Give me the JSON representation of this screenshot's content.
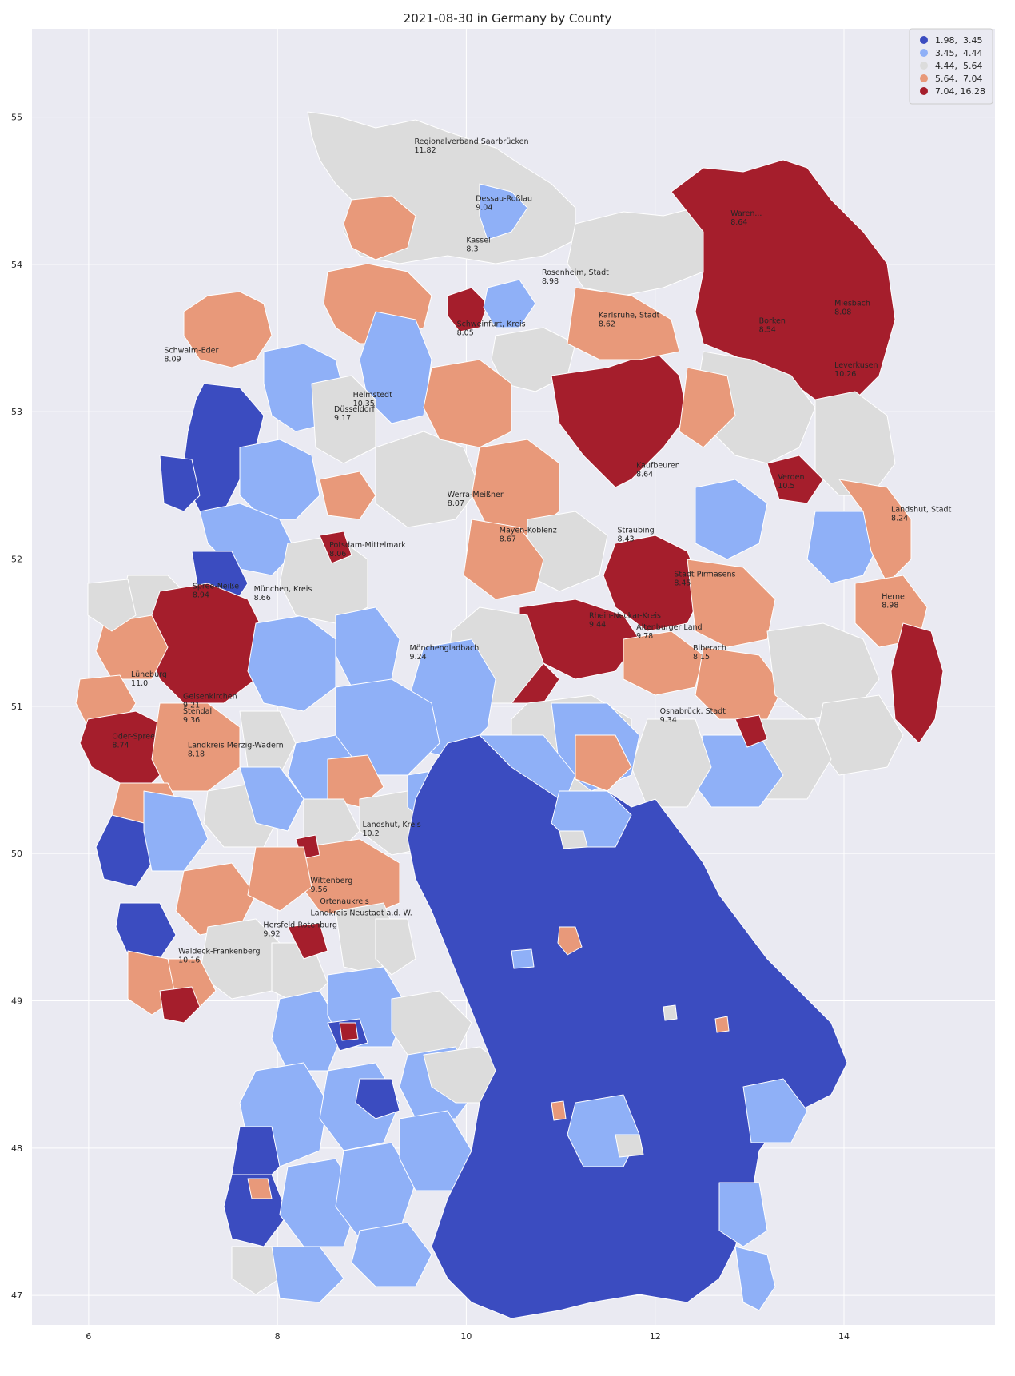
{
  "title": "2021-08-30 in Germany by County",
  "colors": {
    "background": "#eaeaf2",
    "grid": "#ffffff",
    "bin1": "#3b4cc0",
    "bin2": "#8fb0f7",
    "bin3": "#dcdcdc",
    "bin4": "#e8997a",
    "bin5": "#a51e2c",
    "border": "#ffffff"
  },
  "axes": {
    "x_ticks": [
      "6",
      "8",
      "10",
      "12",
      "14"
    ],
    "y_ticks": [
      "47",
      "48",
      "49",
      "50",
      "51",
      "52",
      "53",
      "54",
      "55"
    ]
  },
  "legend": {
    "placement": "top-right",
    "entries": [
      {
        "label": "1.98,  3.45",
        "color": "#3b4cc0"
      },
      {
        "label": "3.45,  4.44",
        "color": "#8fb0f7"
      },
      {
        "label": "4.44,  5.64",
        "color": "#dcdcdc"
      },
      {
        "label": "5.64,  7.04",
        "color": "#e8997a"
      },
      {
        "label": "7.04, 16.28",
        "color": "#a51e2c"
      }
    ]
  },
  "chart_data": {
    "type": "choropleth",
    "title": "2021-08-30 in Germany by County",
    "xlim": [
      5.4,
      15.6
    ],
    "ylim": [
      46.8,
      55.6
    ],
    "x_ticks": [
      6,
      8,
      10,
      12,
      14
    ],
    "y_ticks": [
      47,
      48,
      49,
      50,
      51,
      52,
      53,
      54,
      55
    ],
    "bins": [
      [
        1.98,
        3.45
      ],
      [
        3.45,
        4.44
      ],
      [
        4.44,
        5.64
      ],
      [
        5.64,
        7.04
      ],
      [
        7.04,
        16.28
      ]
    ],
    "labels": [
      {
        "name": "Regionalverband Saarbrücken",
        "value": "11.82",
        "lon": 9.45,
        "lat": 54.82
      },
      {
        "name": "Dessau-Roßlau",
        "value": "9.04",
        "lon": 10.1,
        "lat": 54.43
      },
      {
        "name": "Kassel",
        "value": "8.3",
        "lon": 10.0,
        "lat": 54.15
      },
      {
        "name": "Waren...",
        "value": "8.64",
        "lon": 12.8,
        "lat": 54.33
      },
      {
        "name": "Rosenheim, Stadt",
        "value": "8.98",
        "lon": 10.8,
        "lat": 53.93
      },
      {
        "name": "Miesbach",
        "value": "8.08",
        "lon": 13.9,
        "lat": 53.72
      },
      {
        "name": "Karlsruhe, Stadt",
        "value": "8.62",
        "lon": 11.4,
        "lat": 53.64
      },
      {
        "name": "Schweinfurt, Kreis",
        "value": "8.05",
        "lon": 9.9,
        "lat": 53.58
      },
      {
        "name": "Borken",
        "value": "8.54",
        "lon": 13.1,
        "lat": 53.6
      },
      {
        "name": "Schwalm-Eder",
        "value": "8.09",
        "lon": 6.8,
        "lat": 53.4
      },
      {
        "name": "Leverkusen",
        "value": "10.26",
        "lon": 13.9,
        "lat": 53.3
      },
      {
        "name": "Helmstedt",
        "value": "10.35",
        "lon": 8.8,
        "lat": 53.1
      },
      {
        "name": "Düsseldorf",
        "value": "9.17",
        "lon": 8.6,
        "lat": 53.0
      },
      {
        "name": "Kaufbeuren",
        "value": "8.64",
        "lon": 11.8,
        "lat": 52.62
      },
      {
        "name": "Verden",
        "value": "10.5",
        "lon": 13.3,
        "lat": 52.54
      },
      {
        "name": "Werra-Meißner",
        "value": "8.07",
        "lon": 9.8,
        "lat": 52.42
      },
      {
        "name": "Landshut, Stadt",
        "value": "8.24",
        "lon": 14.5,
        "lat": 52.32
      },
      {
        "name": "Mayen-Koblenz",
        "value": "8.67",
        "lon": 10.35,
        "lat": 52.18
      },
      {
        "name": "Straubing",
        "value": "8.43",
        "lon": 11.6,
        "lat": 52.18
      },
      {
        "name": "Potsdam-Mittelmark",
        "value": "8.06",
        "lon": 8.55,
        "lat": 52.08
      },
      {
        "name": "Stadt Pirmasens",
        "value": "8.45",
        "lon": 12.2,
        "lat": 51.88
      },
      {
        "name": "Spree-Neiße",
        "value": "8.94",
        "lon": 7.1,
        "lat": 51.8
      },
      {
        "name": "München, Kreis",
        "value": "8.66",
        "lon": 7.75,
        "lat": 51.78
      },
      {
        "name": "Herne",
        "value": "8.98",
        "lon": 14.4,
        "lat": 51.73
      },
      {
        "name": "Rhein-Neckar-Kreis",
        "value": "9.44",
        "lon": 11.3,
        "lat": 51.6
      },
      {
        "name": "Altenburger Land",
        "value": "9.78",
        "lon": 11.8,
        "lat": 51.52
      },
      {
        "name": "Biberach",
        "value": "8.15",
        "lon": 12.4,
        "lat": 51.38
      },
      {
        "name": "Mönchengladbach",
        "value": "9.24",
        "lon": 9.4,
        "lat": 51.38
      },
      {
        "name": "Lüneburg",
        "value": "11.0",
        "lon": 6.45,
        "lat": 51.2
      },
      {
        "name": "Gelsenkirchen",
        "value": "9.21",
        "lon": 7.0,
        "lat": 51.05
      },
      {
        "name": "Stendal",
        "value": "9.36",
        "lon": 7.0,
        "lat": 50.95
      },
      {
        "name": "Osnabrück, Stadt",
        "value": "9.34",
        "lon": 12.05,
        "lat": 50.95
      },
      {
        "name": "Oder-Spree",
        "value": "8.74",
        "lon": 6.25,
        "lat": 50.78
      },
      {
        "name": "Landkreis Merzig-Wadern",
        "value": "8.18",
        "lon": 7.05,
        "lat": 50.72
      },
      {
        "name": "Landshut, Kreis",
        "value": "10.2",
        "lon": 8.9,
        "lat": 50.18
      },
      {
        "name": "Wittenberg",
        "value": "9.56",
        "lon": 8.35,
        "lat": 49.8
      },
      {
        "name": "Ortenaukreis",
        "value": "",
        "lon": 8.45,
        "lat": 49.66
      },
      {
        "name": "Landkreis Neustadt a.d. W.",
        "value": "",
        "lon": 8.35,
        "lat": 49.58
      },
      {
        "name": "Hersfeld-Rotenburg",
        "value": "9.92",
        "lon": 7.85,
        "lat": 49.5
      },
      {
        "name": "Waldeck-Frankenberg",
        "value": "10.16",
        "lon": 6.95,
        "lat": 49.32
      }
    ]
  }
}
